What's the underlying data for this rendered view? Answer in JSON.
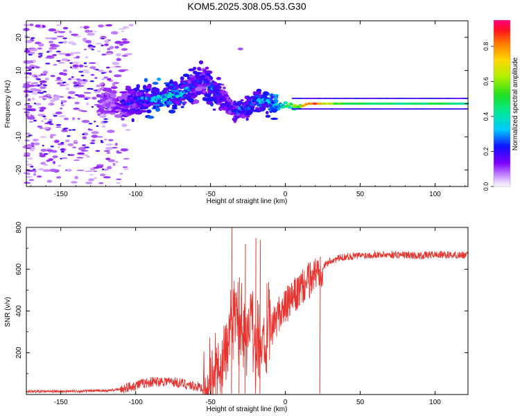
{
  "title": "KOM5.2025.308.05.53.G30",
  "colors": {
    "snr_line": "#e8322e",
    "spectrum_core": "#ff2020",
    "spectrum_mid": "#20d060",
    "spectrum_low": "#9b30ff",
    "spectrum_faint": "#d9b8ff"
  },
  "chart_data": [
    {
      "type": "heatmap",
      "name": "spectrogram",
      "title": "KOM5.2025.308.05.53.G30",
      "xlabel": "Height of straight line (km)",
      "ylabel": "Frequency (Hz)",
      "xlim": [
        -173,
        122
      ],
      "ylim": [
        -25,
        25
      ],
      "xticks": [
        -150,
        -100,
        -50,
        0,
        50,
        100
      ],
      "yticks": [
        -20,
        -10,
        0,
        10,
        20
      ],
      "xtick_labels": [
        "-150",
        "-100",
        "-50",
        "0",
        "50",
        "100"
      ],
      "ytick_labels": [
        "-20",
        "-10",
        "0",
        "10",
        "20"
      ],
      "colorbar": {
        "label": "Normalized spectral amplitude",
        "range": [
          0,
          0.95
        ],
        "ticks": [
          0.0,
          0.2,
          0.4,
          0.6,
          0.8
        ],
        "tick_labels": [
          "0.0",
          "0.2",
          "0.4",
          "0.6",
          "0.8"
        ]
      },
      "ridge": [
        {
          "x": -173,
          "f": 1,
          "amp": 0.1
        },
        {
          "x": -140,
          "f": 0,
          "amp": 0.12
        },
        {
          "x": -120,
          "f": 1,
          "amp": 0.15
        },
        {
          "x": -110,
          "f": 0,
          "amp": 0.2
        },
        {
          "x": -100,
          "f": 1,
          "amp": 0.25
        },
        {
          "x": -90,
          "f": 1,
          "amp": 0.35
        },
        {
          "x": -80,
          "f": 2,
          "amp": 0.4
        },
        {
          "x": -70,
          "f": 3,
          "amp": 0.35
        },
        {
          "x": -60,
          "f": 6,
          "amp": 0.25
        },
        {
          "x": -55,
          "f": 8,
          "amp": 0.22
        },
        {
          "x": -50,
          "f": 5,
          "amp": 0.3
        },
        {
          "x": -45,
          "f": 3,
          "amp": 0.25
        },
        {
          "x": -40,
          "f": 1,
          "amp": 0.22
        },
        {
          "x": -35,
          "f": -2,
          "amp": 0.2
        },
        {
          "x": -30,
          "f": -2,
          "amp": 0.3
        },
        {
          "x": -25,
          "f": -1,
          "amp": 0.25
        },
        {
          "x": -20,
          "f": 1,
          "amp": 0.3
        },
        {
          "x": -15,
          "f": 1,
          "amp": 0.35
        },
        {
          "x": -10,
          "f": 0,
          "amp": 0.35
        },
        {
          "x": -5,
          "f": -1,
          "amp": 0.4
        },
        {
          "x": 0,
          "f": 0,
          "amp": 0.45
        },
        {
          "x": 5,
          "f": -1,
          "amp": 0.6
        },
        {
          "x": 10,
          "f": -1,
          "amp": 0.7
        },
        {
          "x": 15,
          "f": 0,
          "amp": 0.8
        },
        {
          "x": 20,
          "f": 0,
          "amp": 0.92
        },
        {
          "x": 25,
          "f": 0,
          "amp": 0.7
        },
        {
          "x": 40,
          "f": 0,
          "amp": 0.5
        },
        {
          "x": 60,
          "f": 0,
          "amp": 0.48
        },
        {
          "x": 80,
          "f": 0,
          "amp": 0.45
        },
        {
          "x": 100,
          "f": 0,
          "amp": 0.5
        },
        {
          "x": 122,
          "f": 0,
          "amp": 0.42
        }
      ]
    },
    {
      "type": "line",
      "name": "snr",
      "xlabel": "Height of straight line (km)",
      "ylabel": "SNR (v/v)",
      "xlim": [
        -173,
        122
      ],
      "ylim": [
        0,
        800
      ],
      "xticks": [
        -150,
        -100,
        -50,
        0,
        50,
        100
      ],
      "yticks": [
        200,
        400,
        600,
        800
      ],
      "xtick_labels": [
        "-150",
        "-100",
        "-50",
        "0",
        "50",
        "100"
      ],
      "ytick_labels": [
        "200",
        "400",
        "600",
        "800"
      ],
      "series": [
        {
          "name": "SNR",
          "x": [
            -173,
            -150,
            -120,
            -110,
            -100,
            -90,
            -80,
            -70,
            -60,
            -50,
            -45,
            -40,
            -35,
            -33,
            -30,
            -25,
            -22,
            -20,
            -18,
            -15,
            -10,
            -5,
            0,
            5,
            10,
            15,
            20,
            25,
            30,
            40,
            50,
            60,
            70,
            80,
            90,
            100,
            110,
            122
          ],
          "y": [
            15,
            15,
            18,
            25,
            45,
            60,
            65,
            55,
            40,
            25,
            100,
            200,
            380,
            450,
            300,
            320,
            350,
            250,
            280,
            230,
            300,
            380,
            420,
            460,
            500,
            540,
            580,
            610,
            640,
            660,
            665,
            670,
            670,
            668,
            665,
            670,
            668,
            668
          ]
        }
      ],
      "spikes": [
        {
          "x": -36,
          "y": 800
        },
        {
          "x": -31,
          "y": 560
        },
        {
          "x": -27,
          "y": 720
        },
        {
          "x": -20,
          "y": 750
        },
        {
          "x": -17,
          "y": 740
        },
        {
          "x": 23,
          "y": 660
        }
      ]
    }
  ]
}
